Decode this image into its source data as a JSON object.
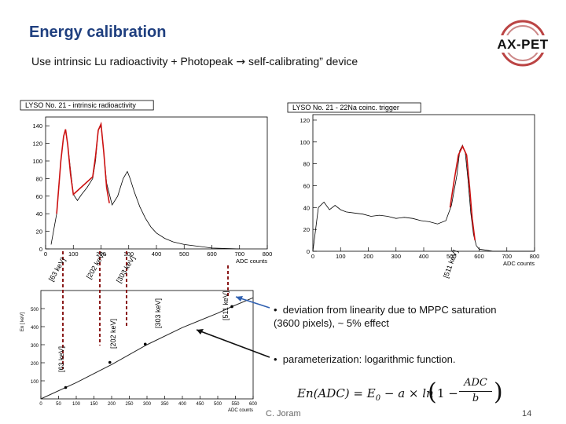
{
  "slide": {
    "title": "Energy calibration",
    "subtitle": "Use intrinsic Lu radioactivity + Photopeak",
    "subtitle_end": "self-calibrating” device",
    "logo_text": "AX-PET",
    "footer_author": "C. Joram",
    "page_number": "14"
  },
  "bullets": [
    "deviation from linearity due to MPPC saturation (3600 pixels), ~ 5% effect",
    "parameterization: logarithmic function."
  ],
  "formula": {
    "lhs": "En(ADC) = E",
    "sub": "0",
    "middle": " − a × ln",
    "num": "ADC",
    "den": "b"
  },
  "peak_labels": {
    "p63": "[63 keV]",
    "p202": "[202 keV]",
    "p303": "[303 keV]",
    "p511": "[511 keV]"
  },
  "chart_data": [
    {
      "type": "line",
      "title": "LYSO No. 21 - intrinsic radioactivity",
      "xlabel": "ADC counts",
      "ylabel": "",
      "xlim": [
        0,
        800
      ],
      "ylim": [
        0,
        150
      ],
      "xticks": [
        0,
        100,
        200,
        300,
        400,
        500,
        600,
        700,
        800
      ],
      "yticks": [
        0,
        20,
        40,
        60,
        80,
        100,
        120,
        140
      ],
      "series": [
        {
          "values": [
            [
              20,
              5
            ],
            [
              40,
              40
            ],
            [
              55,
              100
            ],
            [
              65,
              128
            ],
            [
              72,
              135
            ],
            [
              80,
              118
            ],
            [
              90,
              90
            ],
            [
              100,
              62
            ],
            [
              115,
              55
            ],
            [
              130,
              62
            ],
            [
              150,
              70
            ],
            [
              170,
              80
            ],
            [
              180,
              100
            ],
            [
              190,
              135
            ],
            [
              200,
              140
            ],
            [
              210,
              110
            ],
            [
              220,
              75
            ],
            [
              240,
              50
            ],
            [
              260,
              60
            ],
            [
              280,
              80
            ],
            [
              295,
              88
            ],
            [
              305,
              80
            ],
            [
              320,
              65
            ],
            [
              340,
              48
            ],
            [
              360,
              35
            ],
            [
              380,
              25
            ],
            [
              400,
              18
            ],
            [
              430,
              12
            ],
            [
              460,
              8
            ],
            [
              500,
              5
            ],
            [
              550,
              3
            ],
            [
              600,
              1
            ],
            [
              700,
              0
            ]
          ]
        },
        {
          "values": [
            [
              40,
              40
            ],
            [
              55,
              100
            ],
            [
              65,
              128
            ],
            [
              72,
              136
            ],
            [
              80,
              118
            ],
            [
              90,
              85
            ],
            [
              100,
              62
            ],
            [
              170,
              82
            ],
            [
              180,
              105
            ],
            [
              190,
              135
            ],
            [
              200,
              142
            ],
            [
              210,
              110
            ],
            [
              220,
              70
            ],
            [
              230,
              52
            ]
          ]
        }
      ]
    },
    {
      "type": "line",
      "title": "LYSO No. 21 - 22Na coinc. trigger",
      "xlabel": "ADC counts",
      "ylabel": "",
      "xlim": [
        0,
        800
      ],
      "ylim": [
        0,
        125
      ],
      "xticks": [
        0,
        100,
        200,
        300,
        400,
        500,
        600,
        700,
        800
      ],
      "yticks": [
        0,
        20,
        40,
        60,
        80,
        100,
        120
      ],
      "series": [
        {
          "values": [
            [
              0,
              0
            ],
            [
              20,
              40
            ],
            [
              40,
              45
            ],
            [
              60,
              38
            ],
            [
              80,
              42
            ],
            [
              100,
              38
            ],
            [
              120,
              36
            ],
            [
              150,
              35
            ],
            [
              180,
              34
            ],
            [
              210,
              32
            ],
            [
              240,
              33
            ],
            [
              270,
              32
            ],
            [
              300,
              30
            ],
            [
              330,
              31
            ],
            [
              360,
              30
            ],
            [
              390,
              28
            ],
            [
              420,
              27
            ],
            [
              450,
              25
            ],
            [
              480,
              28
            ],
            [
              500,
              42
            ],
            [
              520,
              70
            ],
            [
              530,
              92
            ],
            [
              540,
              97
            ],
            [
              550,
              90
            ],
            [
              560,
              65
            ],
            [
              570,
              35
            ],
            [
              580,
              15
            ],
            [
              590,
              5
            ],
            [
              600,
              2
            ],
            [
              650,
              0
            ],
            [
              800,
              0
            ]
          ]
        },
        {
          "values": [
            [
              495,
              40
            ],
            [
              510,
              65
            ],
            [
              525,
              88
            ],
            [
              540,
              96
            ],
            [
              555,
              88
            ],
            [
              565,
              60
            ],
            [
              575,
              30
            ],
            [
              585,
              10
            ]
          ]
        }
      ]
    },
    {
      "type": "scatter",
      "title": "",
      "xlabel": "ADC counts",
      "ylabel": "En [ keV]",
      "xlim": [
        0,
        600
      ],
      "ylim": [
        0,
        600
      ],
      "xticks": [
        0,
        50,
        100,
        150,
        200,
        250,
        300,
        350,
        400,
        450,
        500,
        550,
        600
      ],
      "yticks": [
        100,
        200,
        300,
        400,
        500
      ],
      "points": [
        [
          70,
          63
        ],
        [
          195,
          202
        ],
        [
          295,
          303
        ],
        [
          540,
          511
        ]
      ],
      "fit": [
        [
          0,
          0
        ],
        [
          100,
          90
        ],
        [
          200,
          190
        ],
        [
          300,
          300
        ],
        [
          400,
          395
        ],
        [
          500,
          475
        ],
        [
          540,
          511
        ],
        [
          600,
          560
        ]
      ]
    }
  ]
}
